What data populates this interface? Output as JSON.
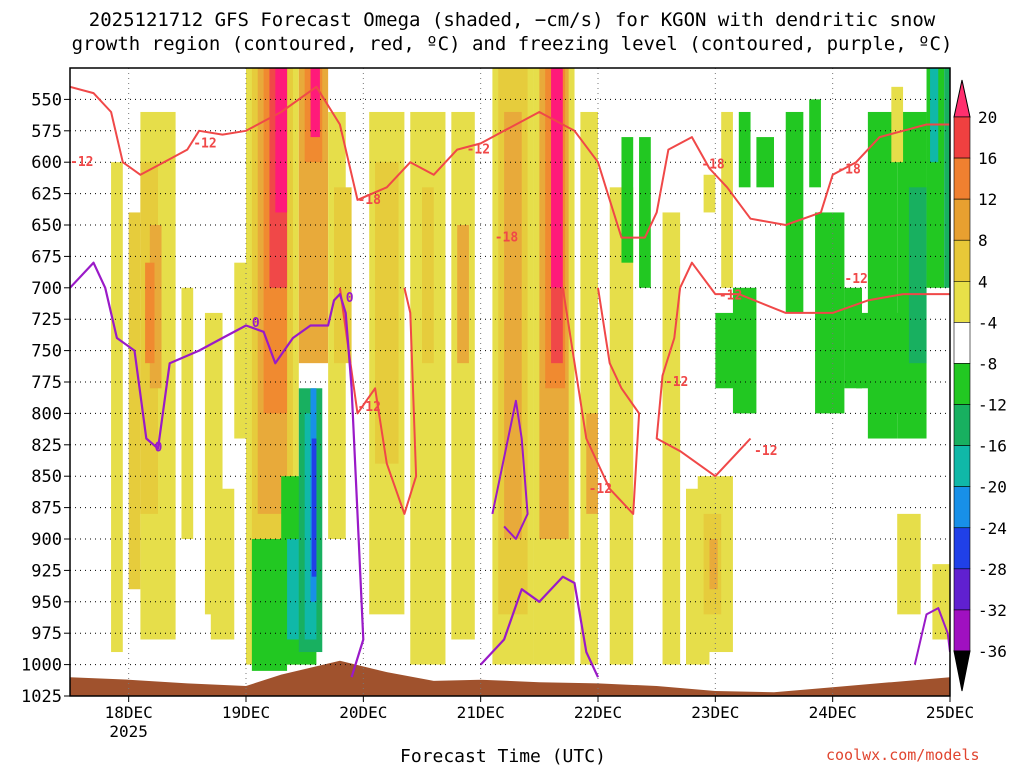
{
  "title_line1": "2025121712 GFS Forecast Omega (shaded, −cm/s) for KGON with dendritic snow",
  "title_line2": "growth region (contoured, red, ºC) and freezing level (contoured, purple, ºC)",
  "credit": "coolwx.com/models",
  "chart_data": {
    "type": "heatmap",
    "xlabel": "Forecast Time (UTC)",
    "ylabel": "",
    "x_ticks": [
      "18DEC",
      "19DEC",
      "20DEC",
      "21DEC",
      "22DEC",
      "23DEC",
      "24DEC",
      "25DEC"
    ],
    "x_year": "2025",
    "y_ticks": [
      "550",
      "575",
      "600",
      "625",
      "650",
      "675",
      "700",
      "725",
      "750",
      "775",
      "800",
      "825",
      "850",
      "875",
      "900",
      "925",
      "950",
      "975",
      "1000",
      "1025"
    ],
    "y_range_hpa": [
      525,
      1025
    ],
    "x_range_days": [
      17.5,
      25.0
    ],
    "grid": true,
    "colorbar": {
      "labels": [
        "20",
        "16",
        "12",
        "8",
        "4",
        "-4",
        "-8",
        "-12",
        "-16",
        "-20",
        "-24",
        "-28",
        "-32",
        "-36"
      ],
      "colors": [
        "#ff2f6e",
        "#f04040",
        "#f08030",
        "#e8a030",
        "#e8c838",
        "#e8e048",
        "#ffffff",
        "#22c822",
        "#18b060",
        "#10b8a8",
        "#1890e8",
        "#2040e8",
        "#6020d0",
        "#a010c0",
        "#a0a0a0",
        "#000000"
      ]
    },
    "snow_growth_contour_labels": [
      {
        "label": "-12",
        "day": 17.5,
        "p": 600
      },
      {
        "label": "-12",
        "day": 18.55,
        "p": 585
      },
      {
        "label": "-18",
        "day": 19.95,
        "p": 630
      },
      {
        "label": "-12",
        "day": 19.95,
        "p": 795
      },
      {
        "label": "-12",
        "day": 20.88,
        "p": 590
      },
      {
        "label": "-18",
        "day": 21.12,
        "p": 660
      },
      {
        "label": "-12",
        "day": 21.92,
        "p": 860
      },
      {
        "label": "-18",
        "day": 22.88,
        "p": 602
      },
      {
        "label": "-12",
        "day": 22.57,
        "p": 775
      },
      {
        "label": "-12",
        "day": 23.03,
        "p": 706
      },
      {
        "label": "-12",
        "day": 23.33,
        "p": 830
      },
      {
        "label": "-18",
        "day": 24.04,
        "p": 606
      },
      {
        "label": "-12",
        "day": 24.1,
        "p": 693
      }
    ],
    "freezing_level_labels": [
      {
        "label": "0",
        "day": 18.22,
        "p": 827
      },
      {
        "label": "0",
        "day": 19.05,
        "p": 728
      },
      {
        "label": "0",
        "day": 19.85,
        "p": 708
      }
    ]
  }
}
